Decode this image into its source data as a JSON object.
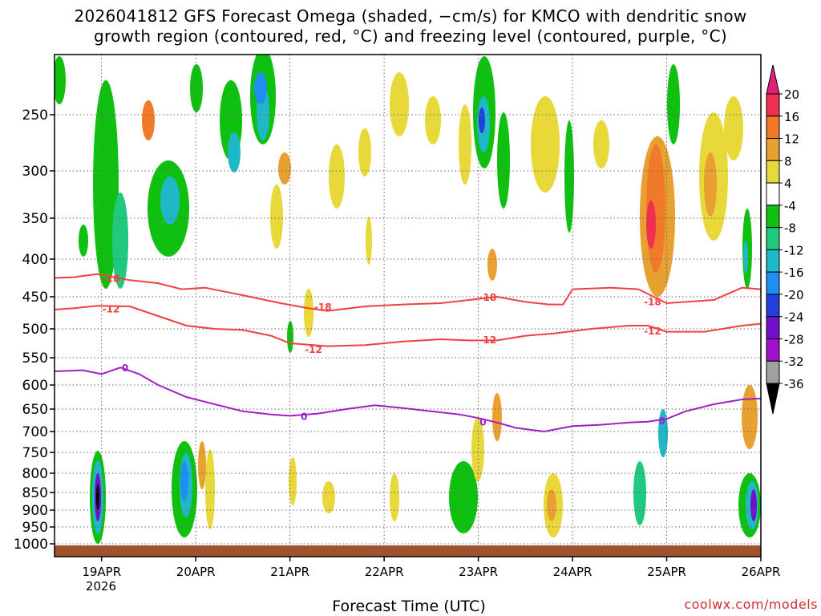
{
  "chart_data": {
    "type": "heatmap",
    "title_line1": "2026041812 GFS Forecast Omega (shaded, −cm/s) for KMCO with dendritic snow",
    "title_line2": "growth region (contoured, red, °C) and freezing level (contoured, purple, °C)",
    "xlabel": "Forecast Time (UTC)",
    "year_label": "2026",
    "credit": "coolwx.com/models",
    "x_range_days": [
      18.5,
      26.0
    ],
    "y_range_hpa": [
      200,
      1010
    ],
    "x_ticks": [
      {
        "day": 19,
        "label": "19APR"
      },
      {
        "day": 20,
        "label": "20APR"
      },
      {
        "day": 21,
        "label": "21APR"
      },
      {
        "day": 22,
        "label": "22APR"
      },
      {
        "day": 23,
        "label": "23APR"
      },
      {
        "day": 24,
        "label": "24APR"
      },
      {
        "day": 25,
        "label": "25APR"
      },
      {
        "day": 26,
        "label": "26APR"
      }
    ],
    "y_ticks": [
      250,
      300,
      350,
      400,
      450,
      500,
      550,
      600,
      650,
      700,
      750,
      800,
      850,
      900,
      950,
      1000
    ],
    "colorbar": {
      "ticks": [
        20,
        16,
        12,
        8,
        4,
        -4,
        -8,
        -12,
        -16,
        -20,
        -24,
        -28,
        -32,
        -36
      ],
      "bands": [
        {
          "from": 20,
          "to": 16,
          "color": "#f03050"
        },
        {
          "from": 16,
          "to": 12,
          "color": "#f07a2a"
        },
        {
          "from": 12,
          "to": 8,
          "color": "#e8a030"
        },
        {
          "from": 8,
          "to": 4,
          "color": "#e8d83a"
        },
        {
          "from": 4,
          "to": -4,
          "color": "#ffffff"
        },
        {
          "from": -4,
          "to": -8,
          "color": "#10c010"
        },
        {
          "from": -8,
          "to": -12,
          "color": "#20c880"
        },
        {
          "from": -12,
          "to": -16,
          "color": "#20b8c8"
        },
        {
          "from": -16,
          "to": -20,
          "color": "#1e8ef0"
        },
        {
          "from": -20,
          "to": -24,
          "color": "#2040e0"
        },
        {
          "from": -24,
          "to": -28,
          "color": "#7010c8"
        },
        {
          "from": -28,
          "to": -32,
          "color": "#a010c8"
        },
        {
          "from": -32,
          "to": -36,
          "color": "#a0a0a0"
        }
      ],
      "top_arrow_color": "#e0207a",
      "bottom_arrow_color": "#000000"
    },
    "series": [
      {
        "name": "-18",
        "label": "-18",
        "color": "#f04040",
        "x": [
          18.5,
          18.7,
          18.95,
          19.3,
          19.6,
          19.85,
          20.1,
          20.5,
          20.9,
          21.2,
          21.4,
          21.8,
          22.2,
          22.6,
          22.9,
          23.2,
          23.5,
          23.75,
          23.9,
          24.0,
          24.4,
          24.7,
          25.0,
          25.5,
          25.8,
          26.0
        ],
        "y": [
          425,
          424,
          420,
          428,
          432,
          440,
          438,
          448,
          460,
          468,
          472,
          465,
          462,
          460,
          455,
          450,
          458,
          462,
          462,
          440,
          438,
          440,
          460,
          455,
          438,
          440
        ],
        "label_positions": [
          [
            19.1,
            425
          ],
          [
            21.35,
            465
          ],
          [
            23.1,
            450
          ],
          [
            24.85,
            457
          ]
        ]
      },
      {
        "name": "-12",
        "label": "-12",
        "color": "#f04040",
        "x": [
          18.5,
          18.7,
          18.95,
          19.3,
          19.6,
          19.9,
          20.2,
          20.5,
          20.8,
          21.0,
          21.4,
          21.8,
          22.2,
          22.6,
          22.9,
          23.2,
          23.5,
          23.8,
          24.2,
          24.6,
          24.8,
          25.0,
          25.4,
          25.8,
          26.0
        ],
        "y": [
          470,
          468,
          464,
          465,
          480,
          495,
          500,
          502,
          512,
          525,
          530,
          528,
          522,
          518,
          520,
          520,
          512,
          508,
          500,
          495,
          495,
          505,
          505,
          495,
          492
        ],
        "label_positions": [
          [
            19.1,
            468
          ],
          [
            21.25,
            535
          ],
          [
            23.1,
            518
          ],
          [
            24.85,
            503
          ]
        ]
      },
      {
        "name": "0",
        "label": "0",
        "color": "#a020c8",
        "x": [
          18.5,
          18.8,
          19.0,
          19.2,
          19.4,
          19.6,
          19.9,
          20.2,
          20.5,
          20.8,
          21.0,
          21.3,
          21.6,
          21.9,
          22.2,
          22.5,
          22.8,
          23.0,
          23.2,
          23.4,
          23.7,
          24.0,
          24.3,
          24.6,
          24.8,
          25.0,
          25.2,
          25.5,
          25.8,
          26.0
        ],
        "y": [
          575,
          573,
          580,
          568,
          580,
          600,
          625,
          640,
          655,
          662,
          665,
          660,
          650,
          642,
          648,
          655,
          662,
          670,
          680,
          692,
          700,
          688,
          685,
          680,
          678,
          672,
          655,
          640,
          630,
          628
        ],
        "label_positions": [
          [
            19.25,
            568
          ],
          [
            21.15,
            665
          ],
          [
            23.05,
            678
          ],
          [
            24.95,
            675
          ]
        ]
      }
    ]
  }
}
